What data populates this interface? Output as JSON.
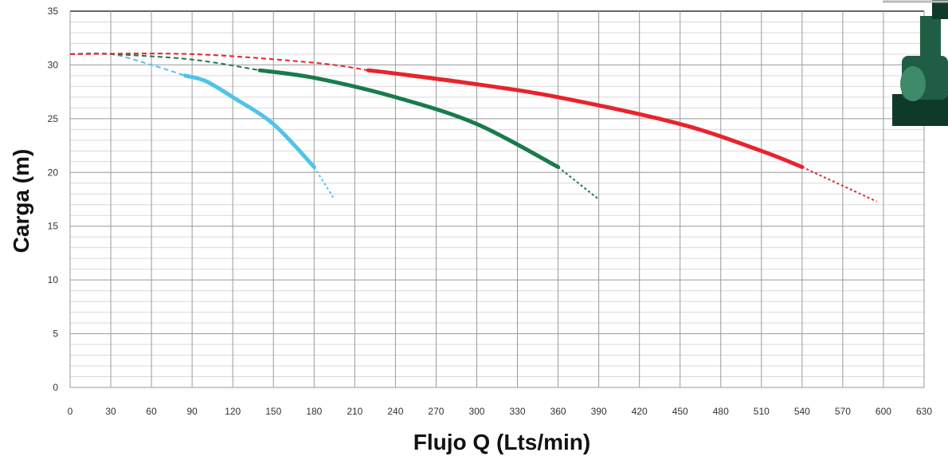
{
  "chart_data": {
    "type": "line",
    "xlabel": "Flujo Q (Lts/min)",
    "ylabel": "Carga  (m)",
    "xlim": [
      0,
      630
    ],
    "ylim": [
      0,
      35
    ],
    "x_ticks": [
      "0",
      "30",
      "60",
      "90",
      "120",
      "150",
      "180",
      "210",
      "240",
      "270",
      "300",
      "330",
      "360",
      "390",
      "420",
      "450",
      "480",
      "510",
      "540",
      "570",
      "600",
      "630"
    ],
    "y_ticks": [
      "0",
      "5",
      "10",
      "15",
      "20",
      "25",
      "30",
      "35"
    ],
    "grid": true,
    "series": [
      {
        "color": "#4fc3ea",
        "dashed_start": [
          [
            0,
            31.0
          ],
          [
            30,
            31.0
          ],
          [
            60,
            30.0
          ],
          [
            85,
            29.0
          ]
        ],
        "solid": [
          [
            85,
            29.0
          ],
          [
            100,
            28.5
          ],
          [
            120,
            27.0
          ],
          [
            150,
            24.5
          ],
          [
            180,
            20.5
          ]
        ],
        "dashed_end": [
          [
            180,
            20.5
          ],
          [
            195,
            17.5
          ]
        ]
      },
      {
        "color": "#1b7a4a",
        "dashed_start": [
          [
            0,
            31.0
          ],
          [
            30,
            31.0
          ],
          [
            90,
            30.5
          ],
          [
            140,
            29.5
          ]
        ],
        "solid": [
          [
            140,
            29.5
          ],
          [
            180,
            28.8
          ],
          [
            240,
            27.0
          ],
          [
            300,
            24.5
          ],
          [
            360,
            20.5
          ]
        ],
        "dashed_end": [
          [
            360,
            20.5
          ],
          [
            390,
            17.5
          ]
        ]
      },
      {
        "color": "#e8232b",
        "dashed_start": [
          [
            0,
            31.0
          ],
          [
            90,
            31.0
          ],
          [
            180,
            30.2
          ],
          [
            220,
            29.5
          ]
        ],
        "solid": [
          [
            220,
            29.5
          ],
          [
            240,
            29.2
          ],
          [
            300,
            28.2
          ],
          [
            360,
            27.0
          ],
          [
            450,
            24.5
          ],
          [
            510,
            22.0
          ],
          [
            540,
            20.5
          ]
        ],
        "dashed_end": [
          [
            540,
            20.5
          ],
          [
            595,
            17.3
          ]
        ]
      }
    ]
  },
  "image": {
    "icon": "pump-unit-icon"
  }
}
